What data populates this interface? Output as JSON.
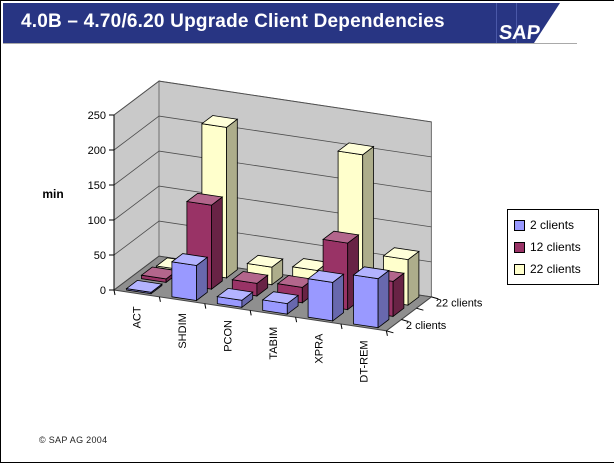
{
  "header": {
    "title": "4.0B – 4.70/6.20 Upgrade Client Dependencies",
    "logo_text": "SAP"
  },
  "footer": {
    "copyright": "© SAP AG 2004"
  },
  "colors": {
    "header_bg": "#283583",
    "wall": "#C9C9C9",
    "floor": "#8F8F8F",
    "series_2_clients": "#9999FF",
    "series_12_clients": "#993366",
    "series_22_clients": "#FFFFCC"
  },
  "chart_data": {
    "type": "bar",
    "subtype": "3d-column",
    "title": "",
    "ylabel": "min",
    "xlabel": "",
    "categories": [
      "ACT",
      "SHDIM",
      "PCON",
      "TABIM",
      "XPRA",
      "DT-REM"
    ],
    "series": [
      {
        "name": "2 clients",
        "color": "#9999FF",
        "values": [
          2,
          50,
          10,
          15,
          55,
          70
        ]
      },
      {
        "name": "12 clients",
        "color": "#993366",
        "values": [
          5,
          120,
          18,
          22,
          95,
          50
        ]
      },
      {
        "name": "22 clients",
        "color": "#FFFFCC",
        "values": [
          2,
          215,
          25,
          30,
          205,
          65
        ]
      }
    ],
    "ylim": [
      0,
      250
    ],
    "ytick_step": 50,
    "yticks": [
      "0",
      "50",
      "100",
      "150",
      "200",
      "250"
    ],
    "depth_axis_labels": [
      "2 clients",
      "22 clients"
    ],
    "legend_position": "right",
    "grid": true
  }
}
